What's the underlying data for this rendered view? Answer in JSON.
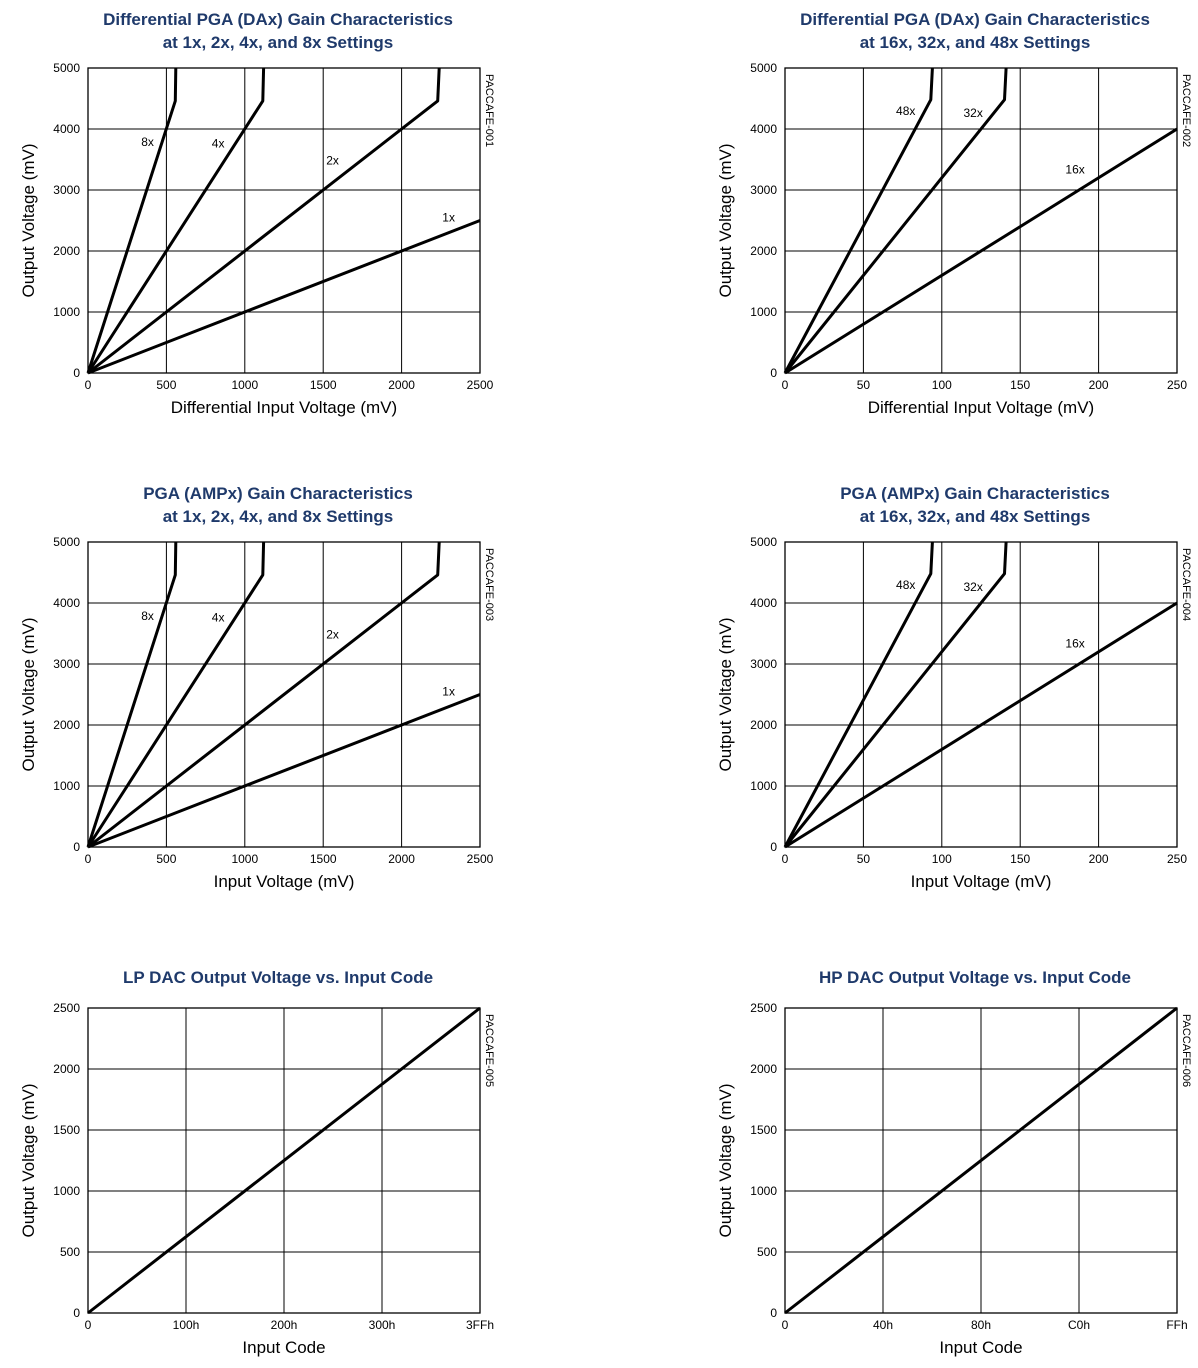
{
  "colors": {
    "title": "#1f3a6b",
    "line": "#000000",
    "grid": "#000000"
  },
  "chart_data": [
    {
      "type": "line",
      "title": "Differential PGA (DAx) Gain Characteristics",
      "subtitle": "at 1x, 2x, 4x, and 8x Settings",
      "xlabel": "Differential Input Voltage (mV)",
      "ylabel": "Output Voltage (mV)",
      "figure_id": "PACCAFE-001",
      "xlim": [
        0,
        2500
      ],
      "ylim": [
        0,
        5000
      ],
      "x_ticks": [
        "0",
        "500",
        "1000",
        "1500",
        "2000",
        "2500"
      ],
      "y_ticks": [
        "0",
        "1000",
        "2000",
        "3000",
        "4000",
        "5000"
      ],
      "grid": true,
      "series": [
        {
          "name": "1x",
          "points": [
            [
              0,
              0
            ],
            [
              2500,
              2500
            ]
          ]
        },
        {
          "name": "2x",
          "points": [
            [
              0,
              0
            ],
            [
              2230,
              4460
            ],
            [
              2240,
              5000
            ]
          ]
        },
        {
          "name": "4x",
          "points": [
            [
              0,
              0
            ],
            [
              1115,
              4460
            ],
            [
              1120,
              5000
            ]
          ]
        },
        {
          "name": "8x",
          "points": [
            [
              0,
              0
            ],
            [
              557,
              4460
            ],
            [
              560,
              5000
            ]
          ]
        }
      ],
      "annotations": [
        {
          "text": "1x",
          "x": 2300,
          "y": 2480
        },
        {
          "text": "2x",
          "x": 1560,
          "y": 3420
        },
        {
          "text": "4x",
          "x": 830,
          "y": 3700
        },
        {
          "text": "8x",
          "x": 380,
          "y": 3720
        }
      ]
    },
    {
      "type": "line",
      "title": "Differential PGA (DAx) Gain Characteristics",
      "subtitle": "at 16x, 32x, and 48x Settings",
      "xlabel": "Differential Input Voltage (mV)",
      "ylabel": "Output Voltage (mV)",
      "figure_id": "PACCAFE-002",
      "xlim": [
        0,
        250
      ],
      "ylim": [
        0,
        5000
      ],
      "x_ticks": [
        "0",
        "50",
        "100",
        "150",
        "200",
        "250"
      ],
      "y_ticks": [
        "0",
        "1000",
        "2000",
        "3000",
        "4000",
        "5000"
      ],
      "grid": true,
      "series": [
        {
          "name": "16x",
          "points": [
            [
              0,
              0
            ],
            [
              250,
              4000
            ]
          ]
        },
        {
          "name": "32x",
          "points": [
            [
              0,
              0
            ],
            [
              140,
              4480
            ],
            [
              141,
              5000
            ]
          ]
        },
        {
          "name": "48x",
          "points": [
            [
              0,
              0
            ],
            [
              93,
              4480
            ],
            [
              94,
              5000
            ]
          ]
        }
      ],
      "annotations": [
        {
          "text": "16x",
          "x": 185,
          "y": 3270
        },
        {
          "text": "32x",
          "x": 120,
          "y": 4200
        },
        {
          "text": "48x",
          "x": 77,
          "y": 4230
        }
      ]
    },
    {
      "type": "line",
      "title": "PGA (AMPx) Gain Characteristics",
      "subtitle": "at 1x, 2x, 4x, and 8x Settings",
      "xlabel": "Input Voltage (mV)",
      "ylabel": "Output Voltage (mV)",
      "figure_id": "PACCAFE-003",
      "xlim": [
        0,
        2500
      ],
      "ylim": [
        0,
        5000
      ],
      "x_ticks": [
        "0",
        "500",
        "1000",
        "1500",
        "2000",
        "2500"
      ],
      "y_ticks": [
        "0",
        "1000",
        "2000",
        "3000",
        "4000",
        "5000"
      ],
      "grid": true,
      "series": [
        {
          "name": "1x",
          "points": [
            [
              0,
              0
            ],
            [
              2500,
              2500
            ]
          ]
        },
        {
          "name": "2x",
          "points": [
            [
              0,
              0
            ],
            [
              2230,
              4460
            ],
            [
              2240,
              5000
            ]
          ]
        },
        {
          "name": "4x",
          "points": [
            [
              0,
              0
            ],
            [
              1115,
              4460
            ],
            [
              1120,
              5000
            ]
          ]
        },
        {
          "name": "8x",
          "points": [
            [
              0,
              0
            ],
            [
              557,
              4460
            ],
            [
              560,
              5000
            ]
          ]
        }
      ],
      "annotations": [
        {
          "text": "1x",
          "x": 2300,
          "y": 2480
        },
        {
          "text": "2x",
          "x": 1560,
          "y": 3420
        },
        {
          "text": "4x",
          "x": 830,
          "y": 3700
        },
        {
          "text": "8x",
          "x": 380,
          "y": 3720
        }
      ]
    },
    {
      "type": "line",
      "title": "PGA (AMPx) Gain Characteristics",
      "subtitle": "at 16x, 32x, and 48x Settings",
      "xlabel": "Input Voltage (mV)",
      "ylabel": "Output Voltage (mV)",
      "figure_id": "PACCAFE-004",
      "xlim": [
        0,
        250
      ],
      "ylim": [
        0,
        5000
      ],
      "x_ticks": [
        "0",
        "50",
        "100",
        "150",
        "200",
        "250"
      ],
      "y_ticks": [
        "0",
        "1000",
        "2000",
        "3000",
        "4000",
        "5000"
      ],
      "grid": true,
      "series": [
        {
          "name": "16x",
          "points": [
            [
              0,
              0
            ],
            [
              250,
              4000
            ]
          ]
        },
        {
          "name": "32x",
          "points": [
            [
              0,
              0
            ],
            [
              140,
              4480
            ],
            [
              141,
              5000
            ]
          ]
        },
        {
          "name": "48x",
          "points": [
            [
              0,
              0
            ],
            [
              93,
              4480
            ],
            [
              94,
              5000
            ]
          ]
        }
      ],
      "annotations": [
        {
          "text": "16x",
          "x": 185,
          "y": 3270
        },
        {
          "text": "32x",
          "x": 120,
          "y": 4200
        },
        {
          "text": "48x",
          "x": 77,
          "y": 4230
        }
      ]
    },
    {
      "type": "line",
      "title": "LP DAC Output Voltage vs. Input Code",
      "subtitle": "",
      "xlabel": "Input Code",
      "ylabel": "Output Voltage (mV)",
      "figure_id": "PACCAFE-005",
      "xlim": [
        0,
        1023
      ],
      "ylim": [
        0,
        2500
      ],
      "x_ticks": [
        "0",
        "100h",
        "200h",
        "300h",
        "3FFh"
      ],
      "y_ticks": [
        "0",
        "500",
        "1000",
        "1500",
        "2000",
        "2500"
      ],
      "grid": true,
      "series": [
        {
          "points": [
            [
              0,
              0
            ],
            [
              1023,
              2500
            ]
          ]
        }
      ],
      "annotations": []
    },
    {
      "type": "line",
      "title": "HP DAC Output Voltage vs. Input Code",
      "subtitle": "",
      "xlabel": "Input Code",
      "ylabel": "Output Voltage (mV)",
      "figure_id": "PACCAFE-006",
      "xlim": [
        0,
        255
      ],
      "ylim": [
        0,
        2500
      ],
      "x_ticks": [
        "0",
        "40h",
        "80h",
        "C0h",
        "FFh"
      ],
      "y_ticks": [
        "0",
        "500",
        "1000",
        "1500",
        "2000",
        "2500"
      ],
      "grid": true,
      "series": [
        {
          "points": [
            [
              0,
              0
            ],
            [
              255,
              2500
            ]
          ]
        }
      ],
      "annotations": []
    }
  ]
}
